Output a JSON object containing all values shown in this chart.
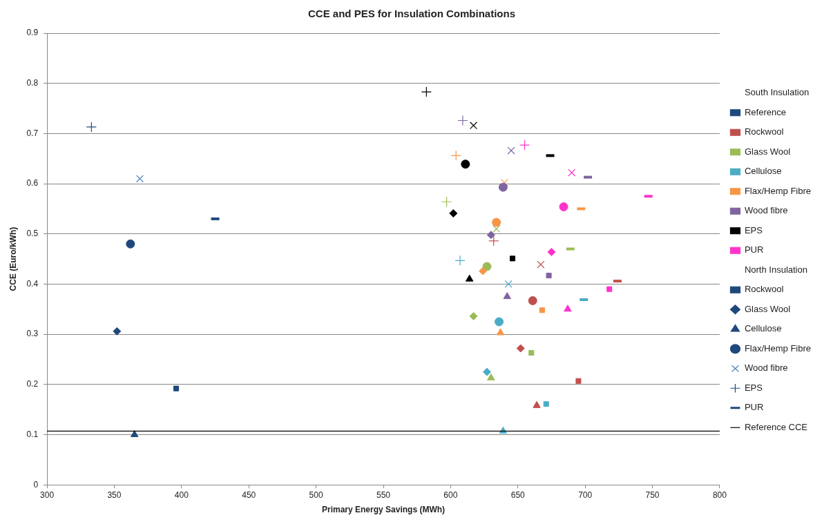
{
  "chart_data": {
    "type": "scatter",
    "title": "CCE and PES for Insulation Combinations",
    "xlabel": "Primary Energy Savings (MWh)",
    "ylabel": "CCE (Euro/kWh)",
    "legend_title": [
      "South Insulation",
      "North Insulation"
    ],
    "series": [
      {
        "name": "Reference",
        "marker": "square",
        "color": "#1f497d"
      },
      {
        "name": "Rockwool",
        "marker": "square",
        "color": "#c0504d"
      },
      {
        "name": "Glass Wool",
        "marker": "square",
        "color": "#9bbb59"
      },
      {
        "name": "Cellulose",
        "marker": "square",
        "color": "#4bacc6"
      },
      {
        "name": "Flax/Hemp Fibre",
        "marker": "square",
        "color": "#f79646"
      },
      {
        "name": "Wood fibre",
        "marker": "square",
        "color": "#8064a2"
      },
      {
        "name": "EPS",
        "marker": "square",
        "color": "#000000"
      },
      {
        "name": "PUR",
        "marker": "square",
        "color": "#ff33cc"
      },
      {
        "name": "Rockwool",
        "marker": "square",
        "color": "#1f497d",
        "x": [
          396,
          695,
          660,
          671,
          668,
          673,
          646,
          718
        ],
        "values": [
          0.192,
          0.207,
          0.263,
          0.161,
          0.348,
          0.417,
          0.451,
          0.39
        ],
        "colors": [
          "#1f497d",
          "#c0504d",
          "#9bbb59",
          "#4bacc6",
          "#f79646",
          "#8064a2",
          "#000000",
          "#ff33cc"
        ]
      },
      {
        "name": "Glass Wool",
        "marker": "diamond",
        "color": "#1f497d",
        "x": [
          352,
          652,
          617,
          627,
          624,
          630,
          602,
          675
        ],
        "values": [
          0.306,
          0.272,
          0.336,
          0.225,
          0.426,
          0.498,
          0.541,
          0.464
        ],
        "colors": [
          "#1f497d",
          "#c0504d",
          "#9bbb59",
          "#4bacc6",
          "#f79646",
          "#8064a2",
          "#000000",
          "#ff33cc"
        ]
      },
      {
        "name": "Cellulose",
        "marker": "triangle",
        "color": "#1f497d",
        "x": [
          365,
          664,
          630,
          639,
          637,
          642,
          614,
          687
        ],
        "values": [
          0.1,
          0.158,
          0.213,
          0.107,
          0.303,
          0.375,
          0.41,
          0.35
        ],
        "colors": [
          "#1f497d",
          "#c0504d",
          "#9bbb59",
          "#4bacc6",
          "#f79646",
          "#8064a2",
          "#000000",
          "#ff33cc"
        ]
      },
      {
        "name": "Flax/Hemp Fibre",
        "marker": "circle",
        "color": "#1f497d",
        "x": [
          362,
          661,
          627,
          636,
          634,
          639,
          611,
          684
        ],
        "values": [
          0.48,
          0.367,
          0.435,
          0.325,
          0.523,
          0.593,
          0.639,
          0.554
        ],
        "colors": [
          "#1f497d",
          "#c0504d",
          "#9bbb59",
          "#4bacc6",
          "#f79646",
          "#8064a2",
          "#000000",
          "#ff33cc"
        ]
      },
      {
        "name": "Wood fibre",
        "marker": "cross",
        "color": "#4f81bd",
        "x": [
          369,
          667,
          634,
          643,
          640,
          645,
          617,
          690
        ],
        "values": [
          0.61,
          0.439,
          0.51,
          0.4,
          0.602,
          0.666,
          0.716,
          0.622
        ],
        "colors": [
          "#4f81bd",
          "#c0504d",
          "#9bbb59",
          "#4bacc6",
          "#f79646",
          "#8064a2",
          "#000000",
          "#ff33cc"
        ]
      },
      {
        "name": "EPS",
        "marker": "plus",
        "color": "#1f497d",
        "x": [
          333,
          632,
          597,
          607,
          604,
          609,
          582,
          655
        ],
        "values": [
          0.713,
          0.486,
          0.564,
          0.447,
          0.656,
          0.726,
          0.783,
          0.677
        ],
        "colors": [
          "#1f497d",
          "#c0504d",
          "#9bbb59",
          "#4bacc6",
          "#f79646",
          "#8064a2",
          "#000000",
          "#ff33cc"
        ]
      },
      {
        "name": "PUR",
        "color": "#1f497d",
        "x": [
          425,
          724,
          689,
          699,
          697,
          702,
          674,
          747
        ],
        "values": [
          0.53,
          0.406,
          0.47,
          0.369,
          0.55,
          0.613,
          0.656,
          0.575
        ],
        "colors": [
          "#1f497d",
          "#c0504d",
          "#9bbb59",
          "#4bacc6",
          "#f79646",
          "#8064a2",
          "#000000",
          "#ff33cc"
        ]
      }
    ],
    "ref_lines": [
      {
        "axis": "y",
        "value": 0.107,
        "label": "Reference CCE",
        "color": "#000000",
        "line_style": "solid"
      }
    ],
    "xlim": [
      300,
      800
    ],
    "xticks": [
      300,
      350,
      400,
      450,
      500,
      550,
      600,
      650,
      700,
      750,
      800
    ],
    "ylim": [
      0,
      0.9
    ],
    "yticks": [
      0,
      0.1,
      0.2,
      0.3,
      0.4,
      0.5,
      0.6,
      0.7,
      0.8,
      0.9
    ],
    "grid": "y",
    "legend": "right"
  }
}
